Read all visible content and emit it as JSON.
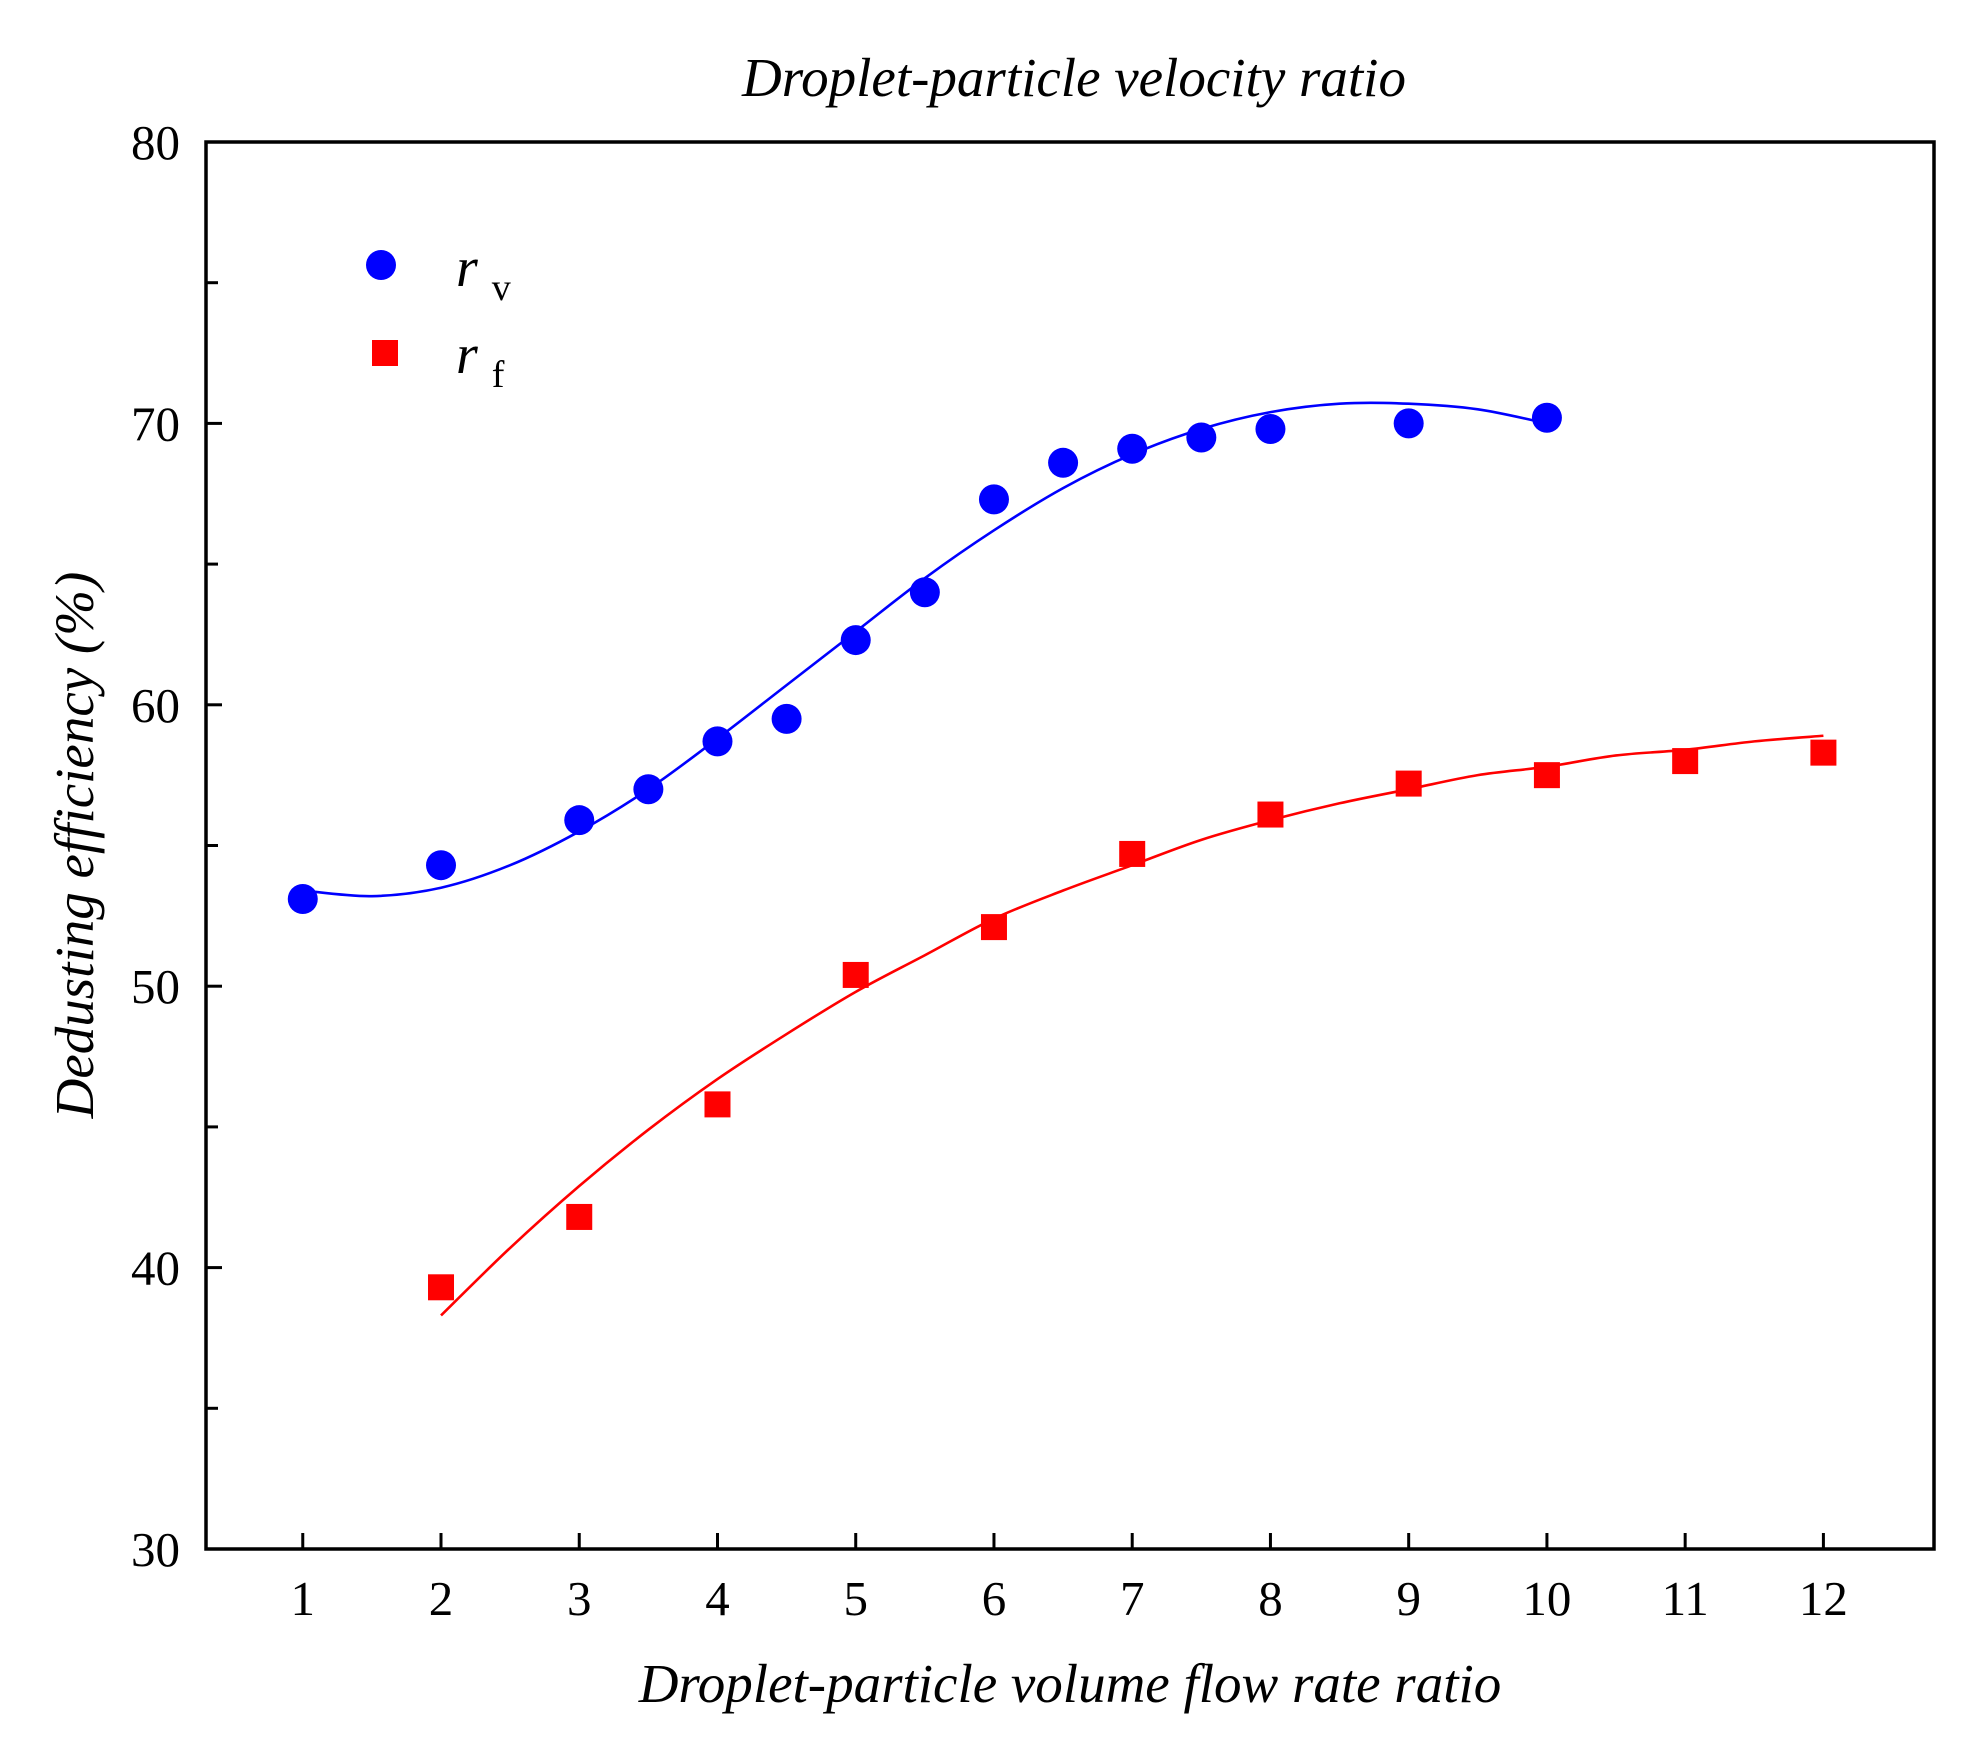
{
  "chart_data": {
    "type": "scatter",
    "title": "Droplet-particle velocity ratio",
    "xlabel": "Droplet-particle volume flow rate ratio",
    "ylabel": "Dedusting efficiency (%)",
    "xlim": [
      0.3,
      12.8
    ],
    "ylim": [
      30,
      80
    ],
    "x_ticks": [
      "1",
      "2",
      "3",
      "4",
      "5",
      "6",
      "7",
      "8",
      "9",
      "10",
      "11",
      "12"
    ],
    "y_ticks": [
      "30",
      "40",
      "50",
      "60",
      "70",
      "80"
    ],
    "y_minor_ticks": [
      35,
      45,
      55,
      65,
      75
    ],
    "legend_position": "top-left",
    "series": [
      {
        "name": "r_v",
        "legend_main": "r",
        "legend_sub": "v",
        "marker": "circle",
        "color": "#0000FF",
        "points": [
          [
            1,
            53.1
          ],
          [
            2,
            54.3
          ],
          [
            3,
            55.9
          ],
          [
            3.5,
            57.0
          ],
          [
            4,
            58.7
          ],
          [
            4.5,
            59.5
          ],
          [
            5,
            62.3
          ],
          [
            5.5,
            64.0
          ],
          [
            6,
            67.3
          ],
          [
            6.5,
            68.6
          ],
          [
            7,
            69.1
          ],
          [
            7.5,
            69.5
          ],
          [
            8,
            69.8
          ],
          [
            9,
            70.0
          ],
          [
            10,
            70.2
          ]
        ],
        "fit_curve": [
          [
            1,
            53.4
          ],
          [
            1.5,
            53.2
          ],
          [
            2,
            53.5
          ],
          [
            2.5,
            54.3
          ],
          [
            3,
            55.5
          ],
          [
            3.5,
            57.0
          ],
          [
            4,
            58.8
          ],
          [
            4.5,
            60.7
          ],
          [
            5,
            62.6
          ],
          [
            5.5,
            64.5
          ],
          [
            6,
            66.2
          ],
          [
            6.5,
            67.7
          ],
          [
            7,
            68.9
          ],
          [
            7.5,
            69.8
          ],
          [
            8,
            70.4
          ],
          [
            8.5,
            70.7
          ],
          [
            9,
            70.7
          ],
          [
            9.5,
            70.5
          ],
          [
            10,
            70.0
          ]
        ]
      },
      {
        "name": "r_f",
        "legend_main": "r",
        "legend_sub": "f",
        "marker": "square",
        "color": "#FF0000",
        "points": [
          [
            2,
            39.3
          ],
          [
            3,
            41.8
          ],
          [
            4,
            45.8
          ],
          [
            5,
            50.4
          ],
          [
            6,
            52.1
          ],
          [
            7,
            54.7
          ],
          [
            8,
            56.1
          ],
          [
            9,
            57.2
          ],
          [
            10,
            57.5
          ],
          [
            11,
            58.0
          ],
          [
            12,
            58.3
          ]
        ],
        "fit_curve": [
          [
            2,
            38.3
          ],
          [
            2.5,
            40.7
          ],
          [
            3,
            42.9
          ],
          [
            3.5,
            44.9
          ],
          [
            4,
            46.7
          ],
          [
            4.5,
            48.3
          ],
          [
            5,
            49.8
          ],
          [
            5.5,
            51.1
          ],
          [
            6,
            52.4
          ],
          [
            6.5,
            53.4
          ],
          [
            7,
            54.3
          ],
          [
            7.5,
            55.2
          ],
          [
            8,
            55.9
          ],
          [
            8.5,
            56.5
          ],
          [
            9,
            57.0
          ],
          [
            9.5,
            57.5
          ],
          [
            10,
            57.8
          ],
          [
            10.5,
            58.2
          ],
          [
            11,
            58.4
          ],
          [
            11.5,
            58.7
          ],
          [
            12,
            58.9
          ]
        ]
      }
    ]
  }
}
